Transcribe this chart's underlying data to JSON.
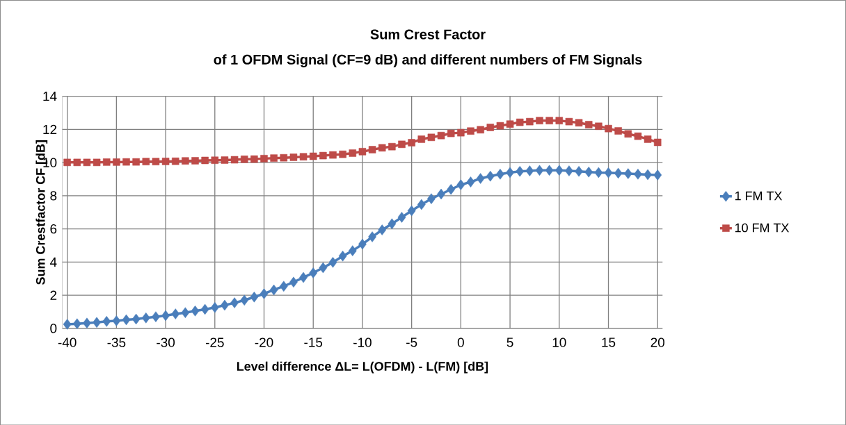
{
  "chart_data": {
    "type": "line",
    "title": "Sum Crest Factor",
    "subtitle": "of 1 OFDM Signal (CF=9 dB) and different numbers of FM Signals",
    "xlabel": "Level difference ΔL= L(OFDM) - L(FM) [dB]",
    "ylabel": "Sum Crestfactor CF [dB]",
    "x": [
      -40,
      -39,
      -38,
      -37,
      -36,
      -35,
      -34,
      -33,
      -32,
      -31,
      -30,
      -29,
      -28,
      -27,
      -26,
      -25,
      -24,
      -23,
      -22,
      -21,
      -20,
      -19,
      -18,
      -17,
      -16,
      -15,
      -14,
      -13,
      -12,
      -11,
      -10,
      -9,
      -8,
      -7,
      -6,
      -5,
      -4,
      -3,
      -2,
      -1,
      0,
      1,
      2,
      3,
      4,
      5,
      6,
      7,
      8,
      9,
      10,
      11,
      12,
      13,
      14,
      15,
      16,
      17,
      18,
      19,
      20
    ],
    "series": [
      {
        "name": "1 FM TX",
        "color": "#4a7ebb",
        "marker": "diamond",
        "values": [
          0.25,
          0.28,
          0.32,
          0.36,
          0.42,
          0.46,
          0.52,
          0.56,
          0.63,
          0.7,
          0.77,
          0.87,
          0.95,
          1.05,
          1.15,
          1.26,
          1.4,
          1.54,
          1.7,
          1.89,
          2.09,
          2.32,
          2.54,
          2.79,
          3.07,
          3.35,
          3.66,
          3.98,
          4.36,
          4.68,
          5.08,
          5.52,
          5.94,
          6.31,
          6.7,
          7.09,
          7.47,
          7.82,
          8.1,
          8.38,
          8.66,
          8.83,
          9.04,
          9.18,
          9.3,
          9.4,
          9.47,
          9.5,
          9.53,
          9.53,
          9.53,
          9.5,
          9.47,
          9.43,
          9.4,
          9.39,
          9.36,
          9.33,
          9.3,
          9.27,
          9.25
        ]
      },
      {
        "name": "10 FM TX",
        "color": "#be4b48",
        "marker": "square",
        "values": [
          10.01,
          10.01,
          10.01,
          10.01,
          10.03,
          10.03,
          10.04,
          10.04,
          10.06,
          10.06,
          10.07,
          10.08,
          10.1,
          10.11,
          10.13,
          10.14,
          10.15,
          10.17,
          10.2,
          10.21,
          10.24,
          10.27,
          10.29,
          10.32,
          10.35,
          10.38,
          10.42,
          10.46,
          10.5,
          10.57,
          10.66,
          10.78,
          10.89,
          10.96,
          11.1,
          11.2,
          11.41,
          11.52,
          11.63,
          11.76,
          11.8,
          11.9,
          11.98,
          12.12,
          12.22,
          12.32,
          12.43,
          12.47,
          12.53,
          12.53,
          12.53,
          12.47,
          12.4,
          12.29,
          12.19,
          12.05,
          11.91,
          11.73,
          11.59,
          11.41,
          11.22
        ]
      }
    ],
    "xlim": [
      -40.5,
      20.5
    ],
    "xticks": [
      -40,
      -35,
      -30,
      -25,
      -20,
      -15,
      -10,
      -5,
      0,
      5,
      10,
      15,
      20
    ],
    "ylim": [
      0,
      14
    ],
    "yticks": [
      0,
      2,
      4,
      6,
      8,
      10,
      12,
      14
    ],
    "grid": true,
    "legend": "right",
    "line_style": "solid"
  }
}
